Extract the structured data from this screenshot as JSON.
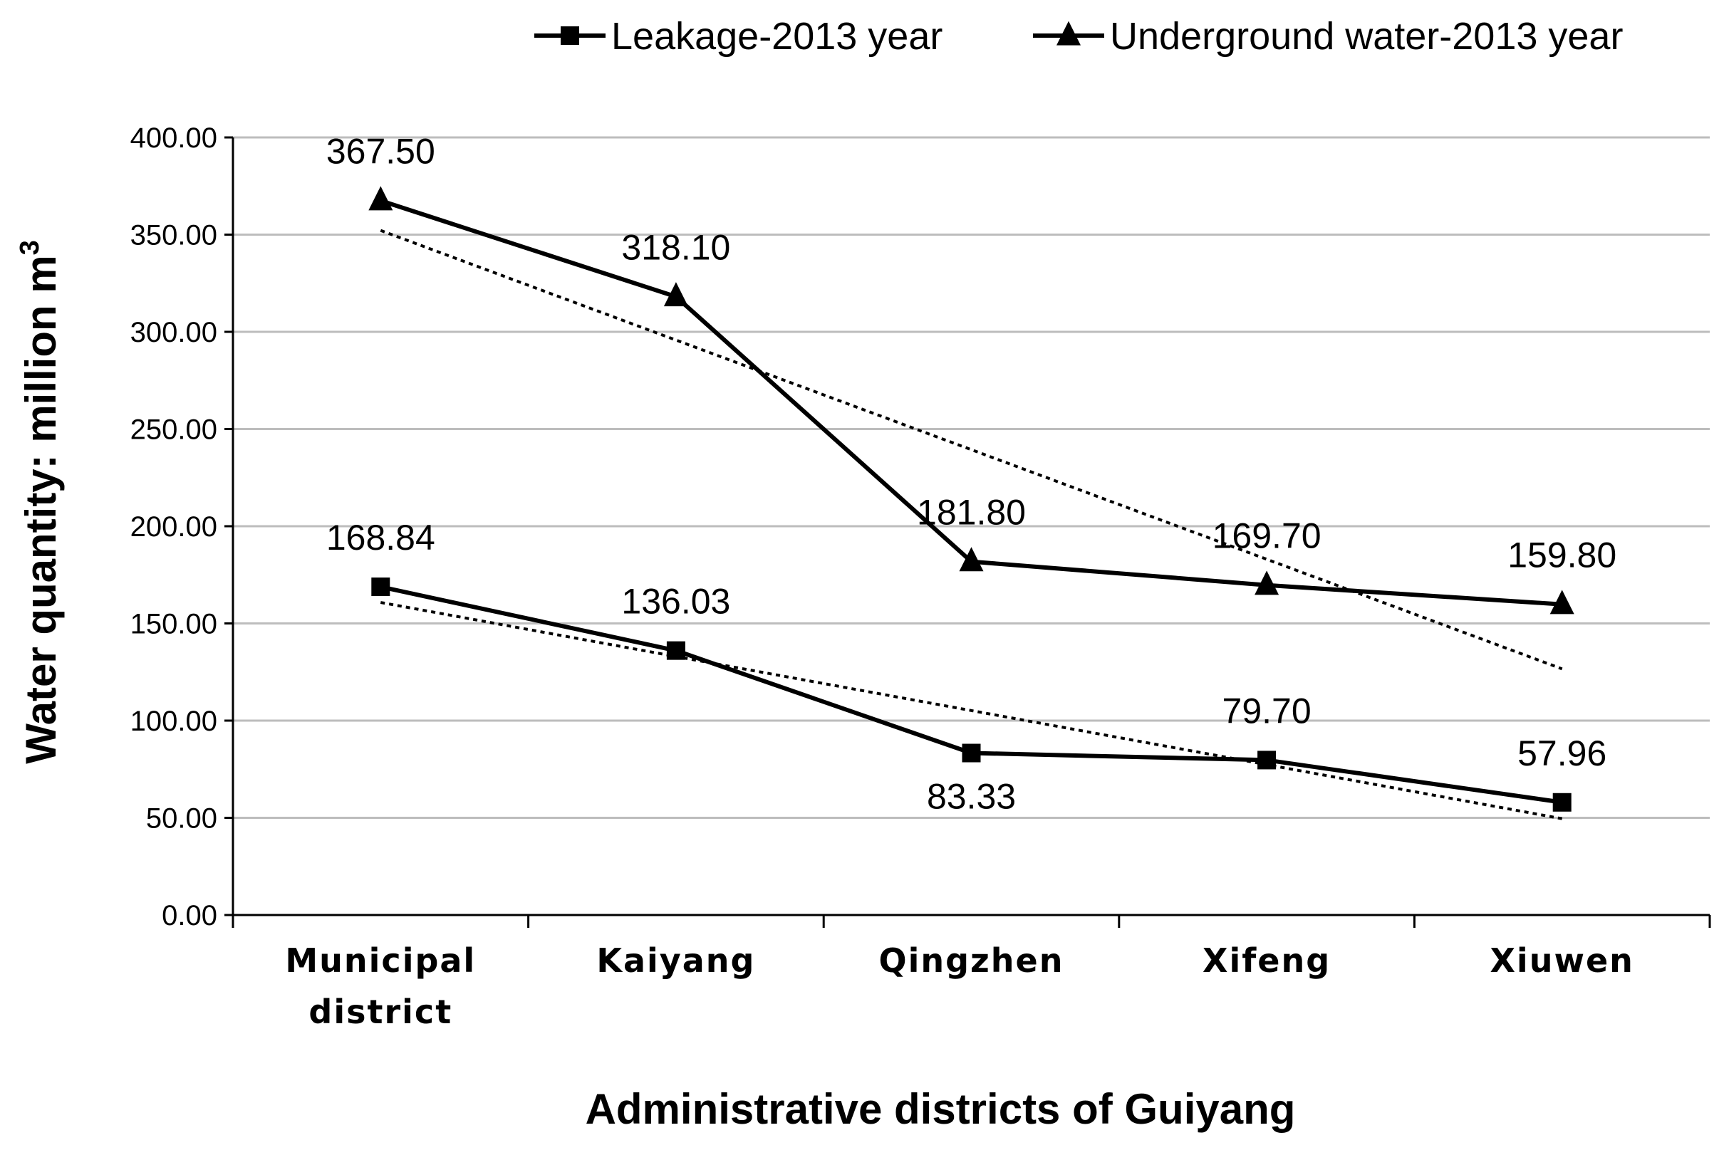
{
  "chart_data": {
    "type": "line",
    "categories": [
      "Municipal district",
      "Kaiyang",
      "Qingzhen",
      "Xifeng",
      "Xiuwen"
    ],
    "series": [
      {
        "name": "Leakage-2013 year",
        "marker": "square",
        "values": [
          168.84,
          136.03,
          83.33,
          79.7,
          57.96
        ],
        "labels": [
          "168.84",
          "136.03",
          "83.33",
          "79.70",
          "57.96"
        ],
        "label_positions": [
          "above",
          "above",
          "below",
          "above",
          "above"
        ],
        "trendline": "linear"
      },
      {
        "name": "Underground water-2013 year",
        "marker": "triangle",
        "values": [
          367.5,
          318.1,
          181.8,
          169.7,
          159.8
        ],
        "labels": [
          "367.50",
          "318.10",
          "181.80",
          "169.70",
          "159.80"
        ],
        "label_positions": [
          "above",
          "above",
          "above",
          "above",
          "above"
        ],
        "trendline": "linear"
      }
    ],
    "xlabel": "Administrative districts of Guiyang",
    "ylabel": "Water quantity: million m",
    "ylabel_superscript": "3",
    "ylim": [
      0,
      400
    ],
    "yticks": [
      "0.00",
      "50.00",
      "100.00",
      "150.00",
      "200.00",
      "250.00",
      "300.00",
      "350.00",
      "400.00"
    ],
    "grid": true,
    "legend_position": "top-right",
    "line_color": "#000000",
    "grid_color": "#bdbdbd"
  }
}
